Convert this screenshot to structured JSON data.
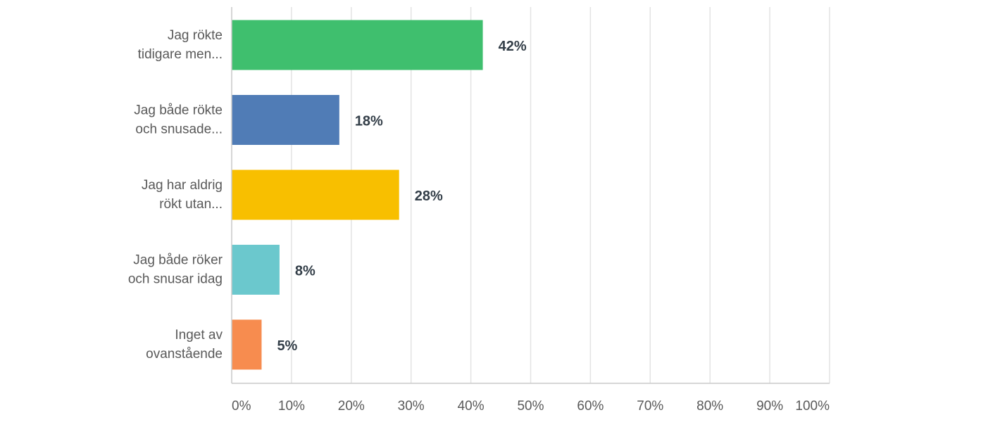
{
  "chart_data": {
    "type": "bar",
    "orientation": "horizontal",
    "categories": [
      [
        "Jag rökte",
        "tidigare men..."
      ],
      [
        "Jag både rökte",
        "och snusade..."
      ],
      [
        "Jag har aldrig",
        "rökt utan..."
      ],
      [
        "Jag både röker",
        "och snusar idag"
      ],
      [
        "Inget av",
        "ovanstående"
      ]
    ],
    "values": [
      42,
      18,
      28,
      8,
      5
    ],
    "data_labels": [
      "42%",
      "18%",
      "28%",
      "8%",
      "5%"
    ],
    "bar_colors": [
      "#3fbf6e",
      "#507cb6",
      "#f8bf00",
      "#6bc8cd",
      "#f78c4f"
    ],
    "xlim": [
      0,
      100
    ],
    "xticks": [
      0,
      10,
      20,
      30,
      40,
      50,
      60,
      70,
      80,
      90,
      100
    ],
    "xtick_labels": [
      "0%",
      "10%",
      "20%",
      "30%",
      "40%",
      "50%",
      "60%",
      "70%",
      "80%",
      "90%",
      "100%"
    ],
    "grid": true,
    "title": "",
    "xlabel": "",
    "ylabel": ""
  }
}
